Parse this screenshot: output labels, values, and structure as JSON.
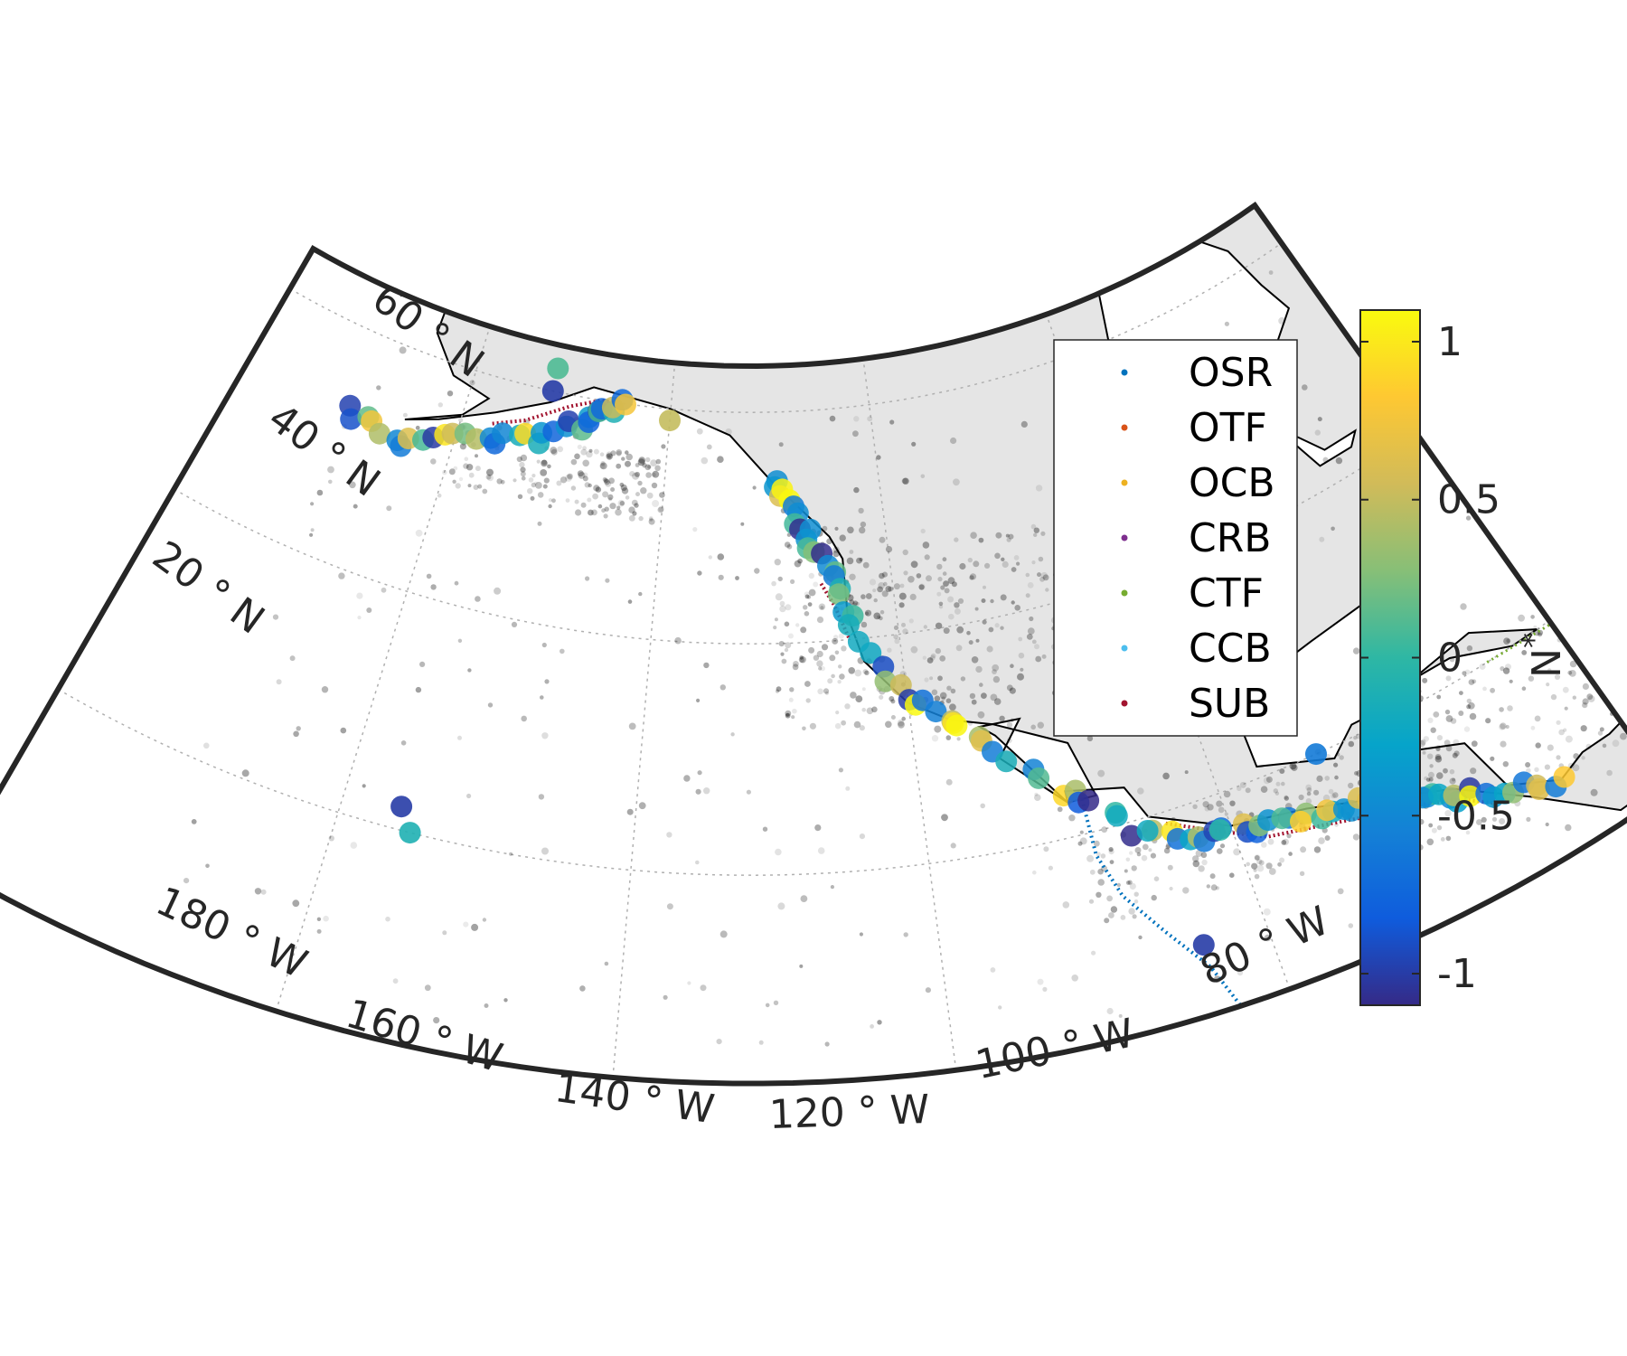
{
  "map": {
    "lat_labels": [
      {
        "id": "lat60",
        "text": "60 ° N",
        "lat": 60
      },
      {
        "id": "lat40",
        "text": "40 ° N",
        "lat": 40
      },
      {
        "id": "lat20",
        "text": "20 ° N",
        "lat": 20
      }
    ],
    "lon_labels": [
      {
        "id": "lon180",
        "text": "180 ° W",
        "lon": 180
      },
      {
        "id": "lon160",
        "text": "160 ° W",
        "lon": 160
      },
      {
        "id": "lon140",
        "text": "140 ° W",
        "lon": 140
      },
      {
        "id": "lon120",
        "text": "120 ° W",
        "lon": 120
      },
      {
        "id": "lon100",
        "text": "100 ° W",
        "lon": 100
      },
      {
        "id": "lon80",
        "text": "80 ° W",
        "lon": 80
      }
    ]
  },
  "legend": {
    "items": [
      {
        "label": "OSR",
        "color": "#0072BD"
      },
      {
        "label": "OTF",
        "color": "#D95319"
      },
      {
        "label": "OCB",
        "color": "#EDB120"
      },
      {
        "label": "CRB",
        "color": "#7E2F8E"
      },
      {
        "label": "CTF",
        "color": "#77AC30"
      },
      {
        "label": "CCB",
        "color": "#4DBEEE"
      },
      {
        "label": "SUB",
        "color": "#A2142F"
      }
    ]
  },
  "colorbar": {
    "label": "N*",
    "ticks": [
      "1",
      "0.5",
      "0",
      "-0.5",
      "-1"
    ],
    "range": [
      -1.1,
      1.1
    ],
    "colormap": "parula",
    "stops": [
      "#352A87",
      "#0F5CDD",
      "#1481D6",
      "#06A4CA",
      "#2EB7A4",
      "#87BF77",
      "#D1BB59",
      "#FEC832",
      "#F9FB0E"
    ]
  }
}
